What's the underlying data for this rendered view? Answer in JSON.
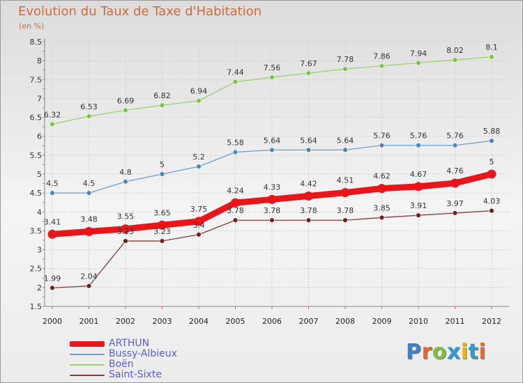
{
  "title": "Evolution du Taux de Taxe d'Habitation",
  "unit": "(en %)",
  "logo": {
    "text": "Proxiti",
    "letter_colors": [
      "#3b82c4",
      "#e8692a",
      "#7fbf3f",
      "#2f9bd6",
      "#f0b400",
      "#2f9bd6",
      "#e8692a"
    ]
  },
  "chart_data": {
    "type": "line",
    "title": "Evolution du Taux de Taxe d'Habitation",
    "ylabel": "(en %)",
    "xlabel": "",
    "x": [
      "2000",
      "2001",
      "2002",
      "2003",
      "2004",
      "2005",
      "2006",
      "2007",
      "2008",
      "2009",
      "2010",
      "2011",
      "2012"
    ],
    "ylim": [
      1.5,
      8.5
    ],
    "yticks": [
      "1.5",
      "2",
      "2.5",
      "3",
      "3.5",
      "4",
      "4.5",
      "5",
      "5.5",
      "6",
      "6.5",
      "7",
      "7.5",
      "8",
      "8.5"
    ],
    "grid": true,
    "legend_position": "bottom-left",
    "series": [
      {
        "name": "ARTHUN",
        "color": "#e8161b",
        "marker": "#e8161b",
        "width": 9,
        "values": [
          3.41,
          3.48,
          3.55,
          3.65,
          3.75,
          4.24,
          4.33,
          4.42,
          4.51,
          4.62,
          4.67,
          4.76,
          5
        ],
        "labels": [
          "3.41",
          "3.48",
          "3.55",
          "3.65",
          "3.75",
          "4.24",
          "4.33",
          "4.42",
          "4.51",
          "4.62",
          "4.67",
          "4.76",
          "5"
        ]
      },
      {
        "name": "Bussy-Albieux",
        "color": "#6a9ecb",
        "marker": "#4a86c0",
        "width": 1.3,
        "values": [
          4.5,
          4.5,
          4.8,
          5,
          5.2,
          5.58,
          5.64,
          5.64,
          5.64,
          5.76,
          5.76,
          5.76,
          5.88
        ],
        "labels": [
          "4.5",
          "4.5",
          "4.8",
          "5",
          "5.2",
          "5.58",
          "5.64",
          "5.64",
          "5.64",
          "5.76",
          "5.76",
          "5.76",
          "5.88"
        ]
      },
      {
        "name": "Boën",
        "color": "#9ad36a",
        "marker": "#7cc246",
        "width": 1.3,
        "values": [
          6.32,
          6.53,
          6.69,
          6.82,
          6.94,
          7.44,
          7.56,
          7.67,
          7.78,
          7.86,
          7.94,
          8.02,
          8.1
        ],
        "labels": [
          "6.32",
          "6.53",
          "6.69",
          "6.82",
          "6.94",
          "7.44",
          "7.56",
          "7.67",
          "7.78",
          "7.86",
          "7.94",
          "8.02",
          "8.1"
        ]
      },
      {
        "name": "Saint-Sixte",
        "color": "#8a3a3a",
        "marker": "#6e2020",
        "width": 1.3,
        "values": [
          1.99,
          2.04,
          3.23,
          3.23,
          3.4,
          3.78,
          3.78,
          3.78,
          3.78,
          3.85,
          3.91,
          3.97,
          4.03
        ],
        "labels": [
          "1.99",
          "2.04",
          "3.23",
          "3.23",
          "3.4",
          "3.78",
          "3.78",
          "3.78",
          "3.78",
          "3.85",
          "3.91",
          "3.97",
          "4.03"
        ]
      }
    ]
  }
}
